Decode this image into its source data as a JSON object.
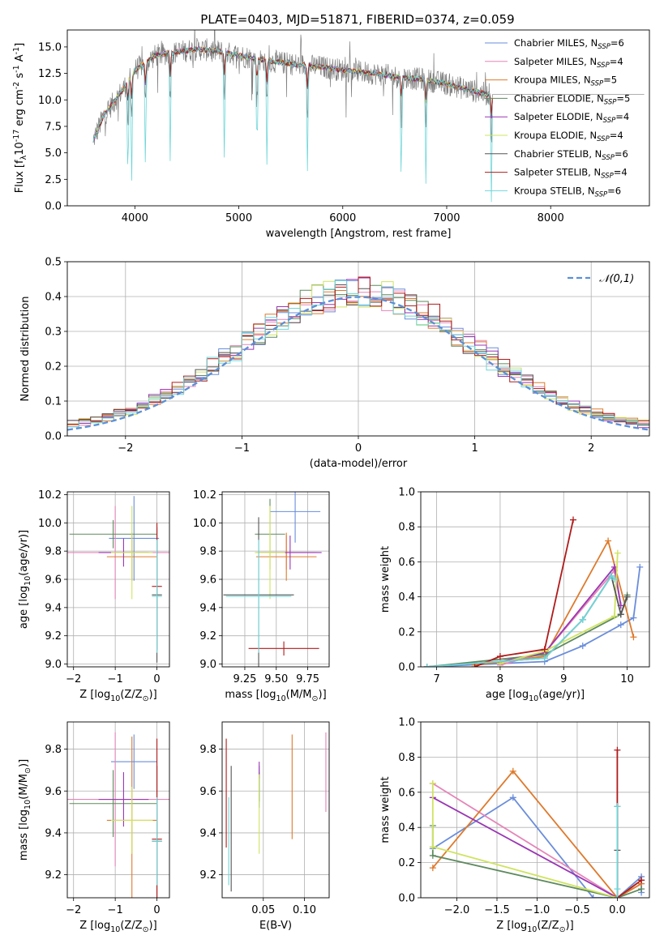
{
  "figure": {
    "title": "PLATE=0403, MJD=51871, FIBERID=0374, z=0.059"
  },
  "models": [
    {
      "name": "Chabrier MILES, N$_{SSP}$=6",
      "label": "Chabrier MILES, N",
      "sub": "SSP",
      "suffix": "=6",
      "color": "#6a8ddb"
    },
    {
      "name": "Salpeter MILES, N$_{SSP}$=4",
      "label": "Salpeter MILES, N",
      "sub": "SSP",
      "suffix": "=4",
      "color": "#e585b8"
    },
    {
      "name": "Kroupa MILES, N$_{SSP}$=5",
      "label": "Kroupa MILES, N",
      "sub": "SSP",
      "suffix": "=5",
      "color": "#de7a2c"
    },
    {
      "name": "Chabrier ELODIE, N$_{SSP}$=5",
      "label": "Chabrier ELODIE, N",
      "sub": "SSP",
      "suffix": "=5",
      "color": "#5e8a5e"
    },
    {
      "name": "Salpeter ELODIE, N$_{SSP}$=4",
      "label": "Salpeter ELODIE, N",
      "sub": "SSP",
      "suffix": "=4",
      "color": "#9a36b3"
    },
    {
      "name": "Kroupa ELODIE, N$_{SSP}$=4",
      "label": "Kroupa ELODIE, N",
      "sub": "SSP",
      "suffix": "=4",
      "color": "#cfe35e"
    },
    {
      "name": "Chabrier STELIB, N$_{SSP}$=6",
      "label": "Chabrier STELIB, N",
      "sub": "SSP",
      "suffix": "=6",
      "color": "#555555"
    },
    {
      "name": "Salpeter STELIB, N$_{SSP}$=4",
      "label": "Salpeter STELIB, N",
      "sub": "SSP",
      "suffix": "=4",
      "color": "#b01a1a"
    },
    {
      "name": "Kroupa STELIB, N$_{SSP}$=6",
      "label": "Kroupa STELIB, N",
      "sub": "SSP",
      "suffix": "=6",
      "color": "#6fd6d9"
    }
  ],
  "chart_data": [
    {
      "id": "spectrum",
      "type": "line",
      "xlabel": "wavelength [Angstrom, rest frame]",
      "ylabel": "Flux [f$_\\lambda$10$^{-17}$ erg cm$^{-2}$ s$^{-1}$ A$^{-1}$]",
      "xlim": [
        3350,
        8950
      ],
      "ylim": [
        0,
        16.6
      ],
      "xticks": [
        4000,
        5000,
        6000,
        7000,
        8000
      ],
      "yticks": [
        0.0,
        2.5,
        5.0,
        7.5,
        10.0,
        12.5,
        15.0
      ],
      "observed_color": "#808080",
      "continuum_x": [
        3600,
        3700,
        3800,
        3900,
        4000,
        4200,
        4400,
        4600,
        4800,
        5000,
        5200,
        5500,
        5800,
        6000,
        6300,
        6500,
        6800,
        7000,
        7200,
        7400
      ],
      "continuum_y": [
        6.2,
        8.5,
        9.8,
        11.2,
        12.8,
        14.2,
        14.5,
        14.8,
        14.6,
        14.2,
        13.8,
        13.4,
        13.1,
        12.8,
        12.5,
        12.2,
        11.9,
        11.5,
        11.0,
        10.5
      ],
      "absorption_lines_x": [
        3934,
        3969,
        4102,
        4340,
        4861,
        5175,
        5270,
        5660,
        6563,
        6800,
        7430
      ],
      "grid": false,
      "legend": "top-right"
    },
    {
      "id": "residuals",
      "type": "line",
      "xlabel": "(data-model)/error",
      "ylabel": "Normed distribution",
      "xlim": [
        -2.5,
        2.5
      ],
      "ylim": [
        0,
        0.5
      ],
      "xticks": [
        -2,
        -1,
        0,
        1,
        2
      ],
      "yticks": [
        0.0,
        0.1,
        0.2,
        0.3,
        0.4,
        0.5
      ],
      "gaussian_label": "$\\mathcal{N}(0,1)$",
      "gaussian_color": "#5b8fd6",
      "bin_width": 0.1,
      "grid": true,
      "legend": "top-right"
    },
    {
      "id": "age_vs_Z",
      "type": "scatter",
      "xlabel": "Z [log$_{10}$(Z/Z$_\\odot$)]",
      "ylabel": "age  [log$_{10}$(age/yr)]",
      "xlim": [
        -2.15,
        0.3
      ],
      "ylim": [
        8.98,
        10.22
      ],
      "xticks": [
        -2,
        -1,
        0
      ],
      "yticks": [
        9.0,
        9.2,
        9.4,
        9.6,
        9.8,
        10.0,
        10.2
      ],
      "points": [
        {
          "m": 0,
          "x": -0.55,
          "xe": 0.6,
          "y": 9.89,
          "ye": 0.3
        },
        {
          "m": 1,
          "x": -1.0,
          "xe": 1.3,
          "y": 9.79,
          "ye": 0.33
        },
        {
          "m": 2,
          "x": -0.6,
          "xe": 0.6,
          "y": 9.76,
          "ye": 0.17
        },
        {
          "m": 3,
          "x": -1.05,
          "xe": 1.05,
          "y": 9.92,
          "ye": 0.1
        },
        {
          "m": 4,
          "x": -0.8,
          "xe": 0.6,
          "y": 9.79,
          "ye": 0.1
        },
        {
          "m": 5,
          "x": -0.6,
          "xe": 0.5,
          "y": 9.79,
          "ye": 0.33
        },
        {
          "m": 6,
          "x": 0.0,
          "xe": 0.12,
          "y": 9.49,
          "ye": 0.48
        },
        {
          "m": 7,
          "x": 0.0,
          "xe": 0.12,
          "y": 9.55,
          "ye": 0.45
        },
        {
          "m": 8,
          "x": 0.0,
          "xe": 0.12,
          "y": 9.48,
          "ye": 0.4
        }
      ],
      "grid": true
    },
    {
      "id": "age_vs_mass",
      "type": "scatter",
      "xlabel": "mass [log$_{10}$(M/M$_\\odot$)]",
      "ylabel": "",
      "xlim": [
        9.07,
        9.92
      ],
      "ylim": [
        8.98,
        10.22
      ],
      "xticks": [
        9.25,
        9.5,
        9.75
      ],
      "yticks": [
        9.0,
        9.2,
        9.4,
        9.6,
        9.8,
        10.0,
        10.2
      ],
      "points": [
        {
          "m": 0,
          "x": 9.65,
          "xe": 0.2,
          "y": 10.08,
          "ye": 0.22
        },
        {
          "m": 1,
          "x": 9.58,
          "xe": 0.24,
          "y": 9.79,
          "ye": 0.12
        },
        {
          "m": 2,
          "x": 9.58,
          "xe": 0.24,
          "y": 9.76,
          "ye": 0.17
        },
        {
          "m": 3,
          "x": 9.45,
          "xe": 0.12,
          "y": 9.92,
          "ye": 0.25
        },
        {
          "m": 4,
          "x": 9.61,
          "xe": 0.25,
          "y": 9.79,
          "ye": 0.12
        },
        {
          "m": 5,
          "x": 9.45,
          "xe": 0.12,
          "y": 9.79,
          "ye": 0.33
        },
        {
          "m": 6,
          "x": 9.36,
          "xe": 0.28,
          "y": 9.49,
          "ye": 0.55
        },
        {
          "m": 7,
          "x": 9.56,
          "xe": 0.28,
          "y": 9.11,
          "ye": 0.05
        },
        {
          "m": 8,
          "x": 9.36,
          "xe": 0.26,
          "y": 9.48,
          "ye": 0.4
        }
      ],
      "grid": true
    },
    {
      "id": "massweight_vs_age",
      "type": "line",
      "xlabel": "age  [log$_{10}$(age/yr)]",
      "ylabel": "mass weight",
      "xlim": [
        6.75,
        10.35
      ],
      "ylim": [
        0,
        1
      ],
      "xticks": [
        7,
        8,
        9,
        10
      ],
      "yticks": [
        0.0,
        0.2,
        0.4,
        0.6,
        0.8,
        1.0
      ],
      "series": [
        {
          "m": 0,
          "x": [
            6.85,
            8.7,
            9.3,
            9.9,
            10.1,
            10.2
          ],
          "y": [
            0.0,
            0.03,
            0.12,
            0.24,
            0.28,
            0.57
          ]
        },
        {
          "m": 1,
          "x": [
            8.0,
            8.7,
            9.8,
            9.9
          ],
          "y": [
            0.01,
            0.08,
            0.55,
            0.35
          ]
        },
        {
          "m": 2,
          "x": [
            7.6,
            8.7,
            9.7,
            10.1
          ],
          "y": [
            0.01,
            0.06,
            0.72,
            0.17
          ]
        },
        {
          "m": 3,
          "x": [
            6.85,
            8.7,
            9.9,
            10.0
          ],
          "y": [
            0.0,
            0.07,
            0.3,
            0.41
          ]
        },
        {
          "m": 4,
          "x": [
            8.0,
            8.7,
            9.8,
            9.9
          ],
          "y": [
            0.03,
            0.08,
            0.57,
            0.35
          ]
        },
        {
          "m": 5,
          "x": [
            8.0,
            8.7,
            9.8,
            9.85
          ],
          "y": [
            0.02,
            0.09,
            0.29,
            0.65
          ]
        },
        {
          "m": 6,
          "x": [
            6.85,
            8.7,
            9.3,
            9.75,
            9.9,
            10.0
          ],
          "y": [
            0.0,
            0.05,
            0.27,
            0.52,
            0.3,
            0.4
          ]
        },
        {
          "m": 7,
          "x": [
            7.6,
            8.0,
            8.7,
            9.15
          ],
          "y": [
            0.0,
            0.06,
            0.1,
            0.84
          ]
        },
        {
          "m": 8,
          "x": [
            6.85,
            8.7,
            9.3,
            9.75,
            9.8
          ],
          "y": [
            0.0,
            0.05,
            0.27,
            0.52,
            0.5
          ]
        }
      ],
      "grid": true
    },
    {
      "id": "mass_vs_Z",
      "type": "scatter",
      "xlabel": "Z [log$_{10}$(Z/Z$_\\odot$)]",
      "ylabel": "mass [log$_{10}$(M/M$_\\odot$)]",
      "xlim": [
        -2.15,
        0.3
      ],
      "ylim": [
        9.09,
        9.93
      ],
      "xticks": [
        -2,
        -1,
        0
      ],
      "yticks": [
        9.2,
        9.4,
        9.6,
        9.8
      ],
      "points": [
        {
          "m": 0,
          "x": -0.55,
          "xe": 0.55,
          "y": 9.74,
          "ye": 0.13
        },
        {
          "m": 1,
          "x": -1.0,
          "xe": 1.3,
          "y": 9.56,
          "ye": 0.32
        },
        {
          "m": 2,
          "x": -0.6,
          "xe": 0.6,
          "y": 9.46,
          "ye": 0.4
        },
        {
          "m": 3,
          "x": -1.05,
          "xe": 1.05,
          "y": 9.54,
          "ye": 0.16
        },
        {
          "m": 4,
          "x": -0.8,
          "xe": 0.6,
          "y": 9.56,
          "ye": 0.13
        },
        {
          "m": 5,
          "x": -0.6,
          "xe": 0.5,
          "y": 9.46,
          "ye": 0.16
        },
        {
          "m": 6,
          "x": 0.0,
          "xe": 0.12,
          "y": 9.36,
          "ye": 0.36
        },
        {
          "m": 7,
          "x": 0.0,
          "xe": 0.12,
          "y": 9.37,
          "ye": 0.48
        },
        {
          "m": 8,
          "x": 0.0,
          "xe": 0.12,
          "y": 9.36,
          "ye": 0.21
        }
      ],
      "grid": true
    },
    {
      "id": "mass_vs_ebv",
      "type": "scatter",
      "xlabel": "E(B-V)",
      "ylabel": "",
      "xlim": [
        0.0,
        0.13
      ],
      "ylim": [
        9.09,
        9.93
      ],
      "xticks": [
        0.05,
        0.1
      ],
      "yticks": [
        9.2,
        9.4,
        9.6,
        9.8
      ],
      "points": [
        {
          "m": 0,
          "x": 0.045,
          "y": 9.62,
          "ye": 0.1
        },
        {
          "m": 1,
          "x": 0.126,
          "y": 9.69,
          "ye": 0.19
        },
        {
          "m": 2,
          "x": 0.085,
          "y": 9.62,
          "ye": 0.25
        },
        {
          "m": 3,
          "x": 0.045,
          "y": 9.62,
          "ye": 0.07
        },
        {
          "m": 4,
          "x": 0.045,
          "y": 9.7,
          "ye": 0.04
        },
        {
          "m": 5,
          "x": 0.045,
          "y": 9.49,
          "ye": 0.19
        },
        {
          "m": 6,
          "x": 0.011,
          "y": 9.42,
          "ye": 0.3
        },
        {
          "m": 7,
          "x": 0.005,
          "y": 9.59,
          "ye": 0.26
        },
        {
          "m": 8,
          "x": 0.008,
          "y": 9.36,
          "ye": 0.21
        }
      ],
      "grid": true
    },
    {
      "id": "massweight_vs_Z",
      "type": "line",
      "xlabel": "Z [log$_{10}$(Z/Z$_\\odot$)]",
      "ylabel": "mass weight",
      "xlim": [
        -2.45,
        0.4
      ],
      "ylim": [
        0,
        1
      ],
      "xticks": [
        -2.0,
        -1.5,
        -1.0,
        -0.5,
        0.0
      ],
      "yticks": [
        0.0,
        0.2,
        0.4,
        0.6,
        0.8,
        1.0
      ],
      "series": [
        {
          "m": 0,
          "x": [
            -2.3,
            -1.3,
            -0.3,
            0.0,
            0.3,
            0.3
          ],
          "y": [
            0.28,
            0.57,
            0.0,
            0.0,
            0.12,
            0.03
          ]
        },
        {
          "m": 1,
          "x": [
            -2.3,
            0.0,
            0.3
          ],
          "y": [
            0.65,
            0.0,
            0.08
          ]
        },
        {
          "m": 2,
          "x": [
            -2.3,
            -1.3,
            0.0,
            0.3
          ],
          "y": [
            0.17,
            0.72,
            0.0,
            0.08
          ]
        },
        {
          "m": 3,
          "x": [
            -2.3,
            -2.3,
            0.0,
            0.3
          ],
          "y": [
            0.41,
            0.24,
            0.0,
            0.05
          ]
        },
        {
          "m": 4,
          "x": [
            -2.3,
            0.0,
            0.3
          ],
          "y": [
            0.57,
            0.0,
            0.1
          ]
        },
        {
          "m": 5,
          "x": [
            -2.3,
            -2.3,
            0.0,
            0.3
          ],
          "y": [
            0.65,
            0.29,
            0.0,
            0.1
          ]
        },
        {
          "m": 6,
          "x": [
            0.0,
            0.0,
            0.0
          ],
          "y": [
            0.52,
            0.27,
            0.0
          ]
        },
        {
          "m": 7,
          "x": [
            0.0,
            0.0,
            0.3
          ],
          "y": [
            0.84,
            0.0,
            0.1
          ]
        },
        {
          "m": 8,
          "x": [
            0.0,
            0.0,
            0.0
          ],
          "y": [
            0.52,
            0.05,
            0.0
          ]
        }
      ],
      "grid": true
    }
  ]
}
